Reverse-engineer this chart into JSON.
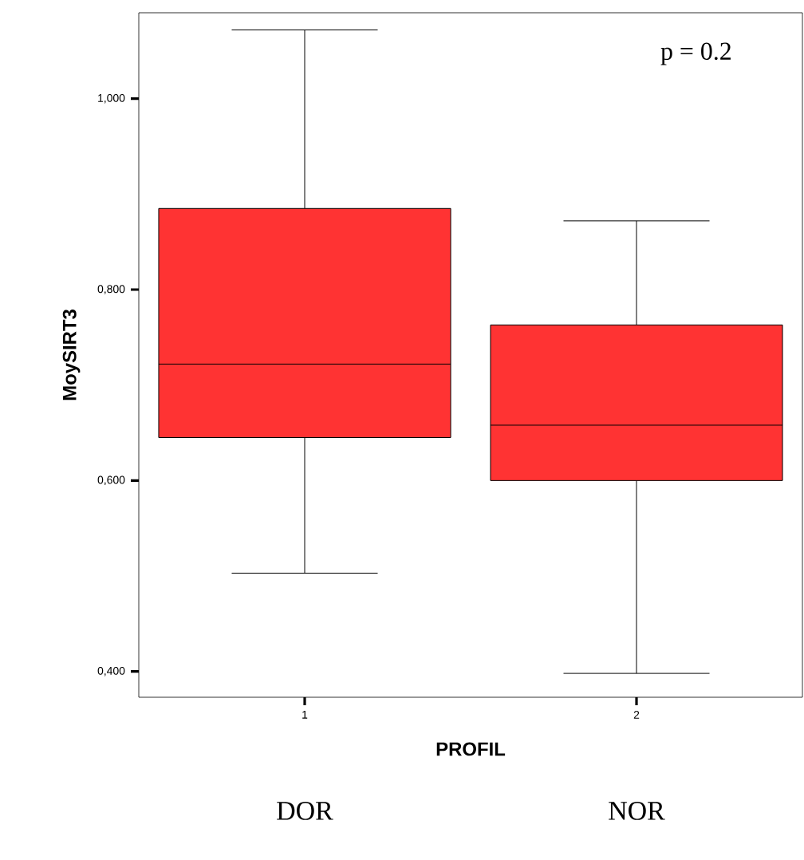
{
  "chart_data": {
    "type": "box",
    "xlabel": "PROFIL",
    "ylabel": "MoySIRT3",
    "categories": [
      "1",
      "2"
    ],
    "color": "#ff3333",
    "boxes": [
      {
        "low": 0.503,
        "q1": 0.645,
        "median": 0.722,
        "q3": 0.885,
        "high": 1.072
      },
      {
        "low": 0.398,
        "q1": 0.6,
        "median": 0.658,
        "q3": 0.763,
        "high": 0.872
      }
    ],
    "ylim": [
      0.373,
      1.09
    ],
    "yticks": [
      {
        "value": 0.4,
        "label": "0,400"
      },
      {
        "value": 0.6,
        "label": "0,600"
      },
      {
        "value": 0.8,
        "label": "0,800"
      },
      {
        "value": 1.0,
        "label": "1,000"
      }
    ],
    "grid": false,
    "annotations": [
      "DOR",
      "NOR",
      "p = 0.2"
    ]
  }
}
